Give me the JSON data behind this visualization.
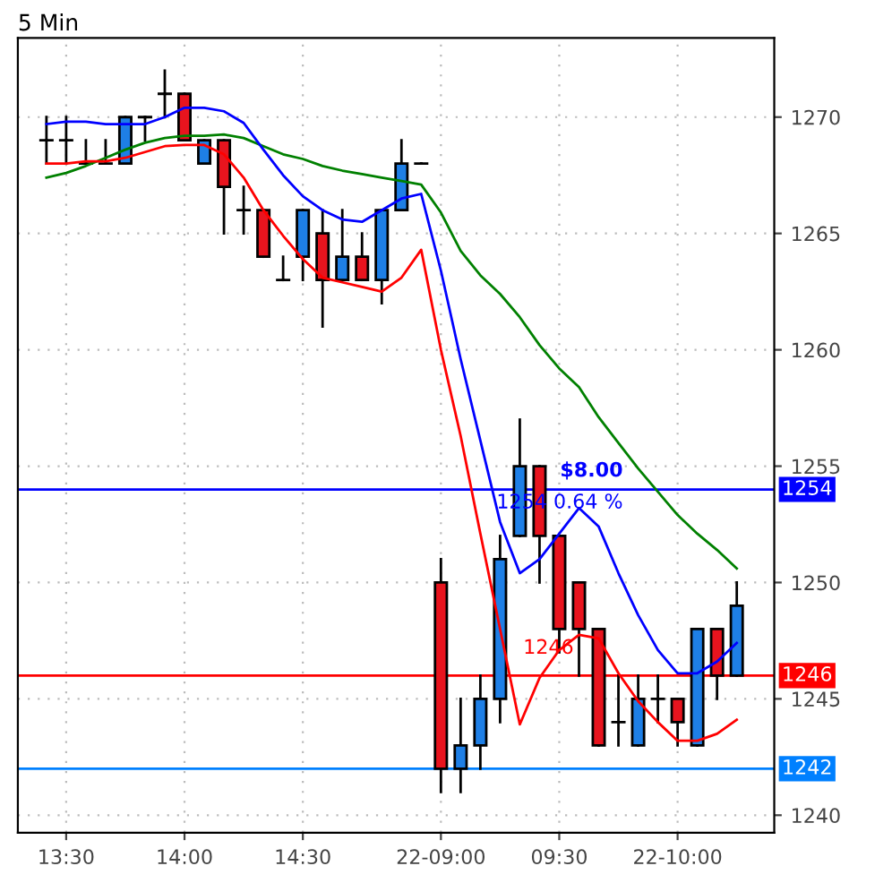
{
  "chart_data": {
    "type": "candlestick",
    "title": "5 Min",
    "categories": [
      null,
      "13:30",
      null,
      null,
      null,
      null,
      null,
      "14:00",
      null,
      null,
      null,
      null,
      null,
      "14:30",
      null,
      null,
      null,
      null,
      null,
      null,
      "22-09:00",
      null,
      null,
      null,
      null,
      null,
      "09:30",
      null,
      null,
      null,
      null,
      null,
      "22-10:00",
      null,
      null,
      null
    ],
    "ohlc": [
      [
        1269,
        1270,
        1268,
        1269
      ],
      [
        1269,
        1270,
        1268,
        1269
      ],
      [
        1268,
        1269,
        1268,
        1268
      ],
      [
        1268,
        1269,
        1268,
        1268
      ],
      [
        1268,
        1270,
        1268,
        1270
      ],
      [
        1270,
        1270,
        1269,
        1270
      ],
      [
        1271,
        1272,
        1270,
        1271
      ],
      [
        1271,
        1271,
        1269,
        1269
      ],
      [
        1268,
        1269,
        1268,
        1269
      ],
      [
        1269,
        1269,
        1265,
        1267
      ],
      [
        1266,
        1267,
        1265,
        1266
      ],
      [
        1266,
        1266,
        1264,
        1264
      ],
      [
        1263,
        1264,
        1263,
        1263
      ],
      [
        1264,
        1266,
        1263,
        1266
      ],
      [
        1265,
        1266,
        1261,
        1263
      ],
      [
        1263,
        1266,
        1263,
        1264
      ],
      [
        1264,
        1265,
        1263,
        1263
      ],
      [
        1263,
        1266,
        1262,
        1266
      ],
      [
        1266,
        1269,
        1266,
        1268
      ],
      [
        1268,
        1268,
        1268,
        1268
      ],
      [
        1250,
        1251,
        1241,
        1242
      ],
      [
        1242,
        1245,
        1241,
        1243
      ],
      [
        1243,
        1246,
        1242,
        1245
      ],
      [
        1245,
        1252,
        1244,
        1251
      ],
      [
        1252,
        1257,
        1252,
        1255
      ],
      [
        1255,
        1255,
        1250,
        1252
      ],
      [
        1252,
        1252,
        1247,
        1248
      ],
      [
        1250,
        1250,
        1246,
        1248
      ],
      [
        1248,
        1248,
        1243,
        1243
      ],
      [
        1244,
        1246,
        1243,
        1244
      ],
      [
        1243,
        1246,
        1243,
        1245
      ],
      [
        1245,
        1246,
        1244,
        1245
      ],
      [
        1245,
        1245,
        1243,
        1244
      ],
      [
        1243,
        1248,
        1243,
        1248
      ],
      [
        1248,
        1248,
        1245,
        1246
      ],
      [
        1246,
        1250,
        1246,
        1249
      ]
    ],
    "colors": [
      "#000000",
      "#000000",
      "#000000",
      "#000000",
      "#1e7fe6",
      "#000000",
      "#000000",
      "#e8141e",
      "#1e7fe6",
      "#e8141e",
      "#000000",
      "#e8141e",
      "#000000",
      "#1e7fe6",
      "#e8141e",
      "#1e7fe6",
      "#e8141e",
      "#1e7fe6",
      "#1e7fe6",
      "#000000",
      "#e8141e",
      "#1e7fe6",
      "#1e7fe6",
      "#1e7fe6",
      "#1e7fe6",
      "#e8141e",
      "#e8141e",
      "#e8141e",
      "#e8141e",
      "#000000",
      "#1e7fe6",
      "#000000",
      "#e8141e",
      "#1e7fe6",
      "#e8141e",
      "#1e7fe6"
    ],
    "series": [
      {
        "type": "line",
        "color": "#008000",
        "values": [
          1267.4,
          1267.6,
          1267.9,
          1268.25,
          1268.6,
          1268.9,
          1269.1,
          1269.2,
          1269.2,
          1269.25,
          1269.1,
          1268.75,
          1268.4,
          1268.2,
          1267.9,
          1267.7,
          1267.55,
          1267.4,
          1267.25,
          1267.1,
          1265.9,
          1264.25,
          1263.2,
          1262.4,
          1261.4,
          1260.2,
          1259.2,
          1258.4,
          1257.1,
          1256,
          1254.9,
          1253.9,
          1252.9,
          1252.1,
          1251.4,
          1250.6
        ]
      },
      {
        "type": "line",
        "color": "#0000ff",
        "values": [
          1269.7,
          1269.8,
          1269.8,
          1269.7,
          1269.7,
          1269.7,
          1270,
          1270.4,
          1270.4,
          1270.25,
          1269.75,
          1268.6,
          1267.5,
          1266.6,
          1266,
          1265.6,
          1265.5,
          1266,
          1266.5,
          1266.7,
          1263.4,
          1259.6,
          1256.1,
          1252.6,
          1250.4,
          1251,
          1252.1,
          1253.2,
          1252.4,
          1250.4,
          1248.6,
          1247.1,
          1246.1,
          1246.1,
          1246.6,
          1247.4
        ]
      },
      {
        "type": "line",
        "color": "#ff0000",
        "values": [
          1268,
          1268,
          1268.1,
          1268.1,
          1268.25,
          1268.5,
          1268.75,
          1268.8,
          1268.8,
          1268.4,
          1267.4,
          1266,
          1264.9,
          1263.9,
          1263.1,
          1262.9,
          1262.7,
          1262.5,
          1263.1,
          1264.3,
          1260,
          1256.3,
          1252.1,
          1248,
          1243.9,
          1245.9,
          1247.1,
          1247.75,
          1247.6,
          1246.1,
          1244.9,
          1244,
          1243.2,
          1243.2,
          1243.5,
          1244.1
        ]
      }
    ],
    "ylim": [
      1239.25,
      1273.4
    ],
    "yticks": [
      1240,
      1245,
      1250,
      1255,
      1260,
      1265,
      1270
    ],
    "ref_lines": [
      {
        "axis": "y",
        "value": 1242,
        "label": "1242",
        "color": "#0080ff"
      },
      {
        "axis": "y",
        "value": 1254,
        "label": "1254",
        "color": "#0000ff"
      },
      {
        "axis": "y",
        "value": 1246,
        "label": "1246",
        "color": "#ff0000"
      }
    ],
    "annotations": [
      "$8.00",
      "1254 0.64 %",
      "1246"
    ],
    "grid": true,
    "legend": false
  }
}
